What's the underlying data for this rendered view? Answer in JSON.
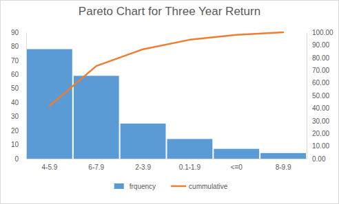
{
  "chart_data": {
    "type": "bar",
    "title": "Pareto Chart for Three Year Return",
    "categories": [
      "4-5.9",
      "6-7.9",
      "2-3.9",
      "0.1-1.9",
      "<=0",
      "8-9.9"
    ],
    "series": [
      {
        "name": "frquency",
        "type": "bar",
        "color": "#5b9bd5",
        "values": [
          78,
          59,
          25,
          14,
          7,
          4
        ]
      },
      {
        "name": "cummulative",
        "type": "line",
        "color": "#ed7d31",
        "axis": "y2",
        "values": [
          41.7,
          73.3,
          86.6,
          94.1,
          97.9,
          100
        ]
      }
    ],
    "ylim": [
      0,
      90
    ],
    "yticks": [
      0,
      10,
      20,
      30,
      40,
      50,
      60,
      70,
      80,
      90
    ],
    "y2lim": [
      0,
      100
    ],
    "y2ticks": [
      {
        "value": 0,
        "label": "0.00"
      },
      {
        "value": 10,
        "label": "10.00"
      },
      {
        "value": 20,
        "label": "20.00"
      },
      {
        "value": 30,
        "label": "30.00"
      },
      {
        "value": 40,
        "label": "40.00"
      },
      {
        "value": 50,
        "label": "50.00"
      },
      {
        "value": 60,
        "label": "60.00"
      },
      {
        "value": 70,
        "label": "70.00"
      },
      {
        "value": 80,
        "label": "80.00"
      },
      {
        "value": 90,
        "label": "90.00"
      },
      {
        "value": 100,
        "label": "100.00"
      }
    ],
    "legend": "bottom"
  }
}
